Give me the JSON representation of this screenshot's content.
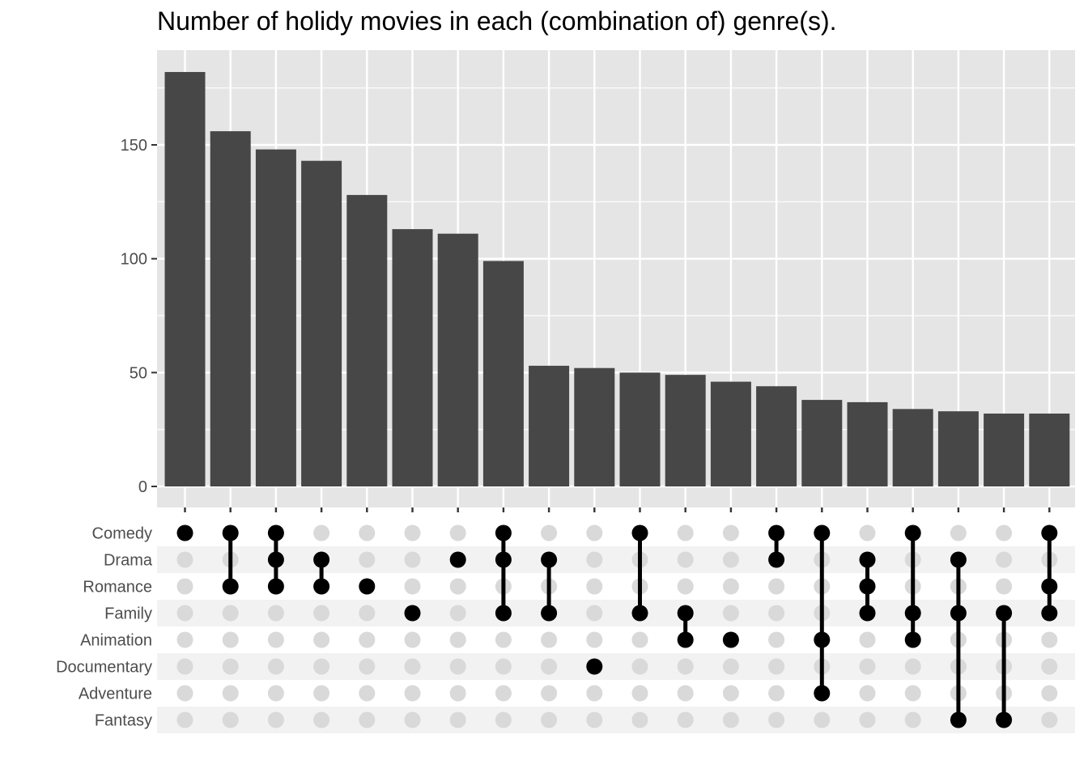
{
  "chart_data": {
    "type": "bar",
    "title": "Number of holidy movies in each (combination of) genre(s).",
    "xlabel": "",
    "ylabel": "",
    "ylim": [
      0,
      185
    ],
    "yticks": [
      0,
      50,
      100,
      150
    ],
    "grid": true,
    "sets": [
      "Comedy",
      "Drama",
      "Romance",
      "Family",
      "Animation",
      "Documentary",
      "Adventure",
      "Fantasy"
    ],
    "intersections": [
      {
        "sets": [
          "Comedy"
        ],
        "value": 182
      },
      {
        "sets": [
          "Comedy",
          "Romance"
        ],
        "value": 156
      },
      {
        "sets": [
          "Comedy",
          "Drama",
          "Romance"
        ],
        "value": 148
      },
      {
        "sets": [
          "Drama",
          "Romance"
        ],
        "value": 143
      },
      {
        "sets": [
          "Romance"
        ],
        "value": 128
      },
      {
        "sets": [
          "Family"
        ],
        "value": 113
      },
      {
        "sets": [
          "Drama"
        ],
        "value": 111
      },
      {
        "sets": [
          "Comedy",
          "Drama",
          "Family"
        ],
        "value": 99
      },
      {
        "sets": [
          "Drama",
          "Family"
        ],
        "value": 53
      },
      {
        "sets": [
          "Documentary"
        ],
        "value": 52
      },
      {
        "sets": [
          "Comedy",
          "Family"
        ],
        "value": 50
      },
      {
        "sets": [
          "Family",
          "Animation"
        ],
        "value": 49
      },
      {
        "sets": [
          "Animation"
        ],
        "value": 46
      },
      {
        "sets": [
          "Comedy",
          "Drama"
        ],
        "value": 44
      },
      {
        "sets": [
          "Comedy",
          "Animation",
          "Adventure"
        ],
        "value": 38
      },
      {
        "sets": [
          "Drama",
          "Romance",
          "Family"
        ],
        "value": 37
      },
      {
        "sets": [
          "Comedy",
          "Family",
          "Animation"
        ],
        "value": 34
      },
      {
        "sets": [
          "Drama",
          "Family",
          "Fantasy"
        ],
        "value": 33
      },
      {
        "sets": [
          "Family",
          "Fantasy"
        ],
        "value": 32
      },
      {
        "sets": [
          "Comedy",
          "Romance",
          "Family"
        ],
        "value": 32
      }
    ]
  },
  "colors": {
    "panel_bg": "#e5e5e5",
    "grid": "#ffffff",
    "bar": "#474747",
    "dot_on": "#000000",
    "dot_off": "#d9d9d9",
    "stripe": "#f2f2f2",
    "text": "#4d4d4d"
  }
}
